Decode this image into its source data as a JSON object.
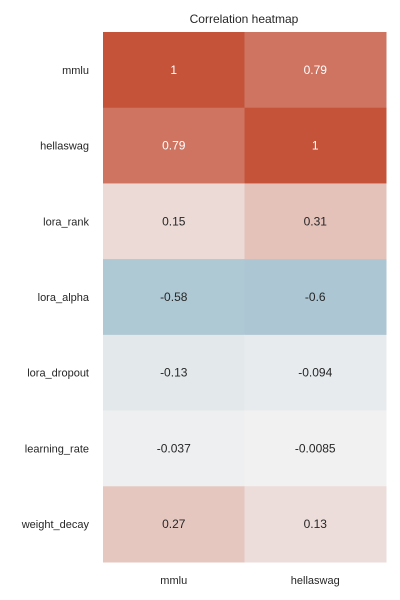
{
  "chart_data": {
    "type": "heatmap",
    "title": "Correlation heatmap",
    "x_categories": [
      "mmlu",
      "hellaswag"
    ],
    "y_categories": [
      "mmlu",
      "hellaswag",
      "lora_rank",
      "lora_alpha",
      "lora_dropout",
      "learning_rate",
      "weight_decay"
    ],
    "values": [
      [
        1,
        0.79
      ],
      [
        0.79,
        1
      ],
      [
        0.15,
        0.31
      ],
      [
        -0.58,
        -0.6
      ],
      [
        -0.13,
        -0.094
      ],
      [
        -0.037,
        -0.0085
      ],
      [
        0.27,
        0.13
      ]
    ],
    "value_labels": [
      [
        "1",
        "0.79"
      ],
      [
        "0.79",
        "1"
      ],
      [
        "0.15",
        "0.31"
      ],
      [
        "-0.58",
        "-0.6"
      ],
      [
        "-0.13",
        "-0.094"
      ],
      [
        "-0.037",
        "-0.0085"
      ],
      [
        "0.27",
        "0.13"
      ]
    ],
    "vmin": -1,
    "vmax": 1,
    "colormap": {
      "negative": "#7da9be",
      "center": "#f2f2f2",
      "positive": "#c4533a"
    },
    "colorbar": false,
    "annotated": true
  }
}
